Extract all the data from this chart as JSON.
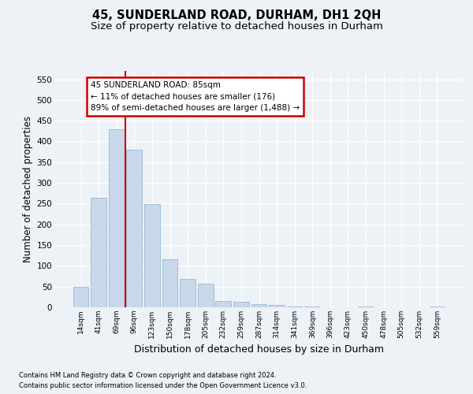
{
  "title": "45, SUNDERLAND ROAD, DURHAM, DH1 2QH",
  "subtitle": "Size of property relative to detached houses in Durham",
  "xlabel": "Distribution of detached houses by size in Durham",
  "ylabel": "Number of detached properties",
  "bar_labels": [
    "14sqm",
    "41sqm",
    "69sqm",
    "96sqm",
    "123sqm",
    "150sqm",
    "178sqm",
    "205sqm",
    "232sqm",
    "259sqm",
    "287sqm",
    "314sqm",
    "341sqm",
    "369sqm",
    "396sqm",
    "423sqm",
    "450sqm",
    "478sqm",
    "505sqm",
    "532sqm",
    "559sqm"
  ],
  "bar_heights": [
    50,
    265,
    430,
    380,
    248,
    115,
    68,
    57,
    16,
    13,
    8,
    5,
    2,
    2,
    0,
    0,
    2,
    0,
    0,
    0,
    2
  ],
  "bar_color": "#c8d8ea",
  "bar_edge_color": "#8ab0cc",
  "vline_x": 2.5,
  "vline_color": "#cc0000",
  "annotation_line1": "45 SUNDERLAND ROAD: 85sqm",
  "annotation_line2": "← 11% of detached houses are smaller (176)",
  "annotation_line3": "89% of semi-detached houses are larger (1,488) →",
  "annotation_box_facecolor": "#ffffff",
  "annotation_box_edgecolor": "#cc0000",
  "ylim": [
    0,
    570
  ],
  "yticks": [
    0,
    50,
    100,
    150,
    200,
    250,
    300,
    350,
    400,
    450,
    500,
    550
  ],
  "bg_color": "#edf2f7",
  "footer_line1": "Contains HM Land Registry data © Crown copyright and database right 2024.",
  "footer_line2": "Contains public sector information licensed under the Open Government Licence v3.0."
}
